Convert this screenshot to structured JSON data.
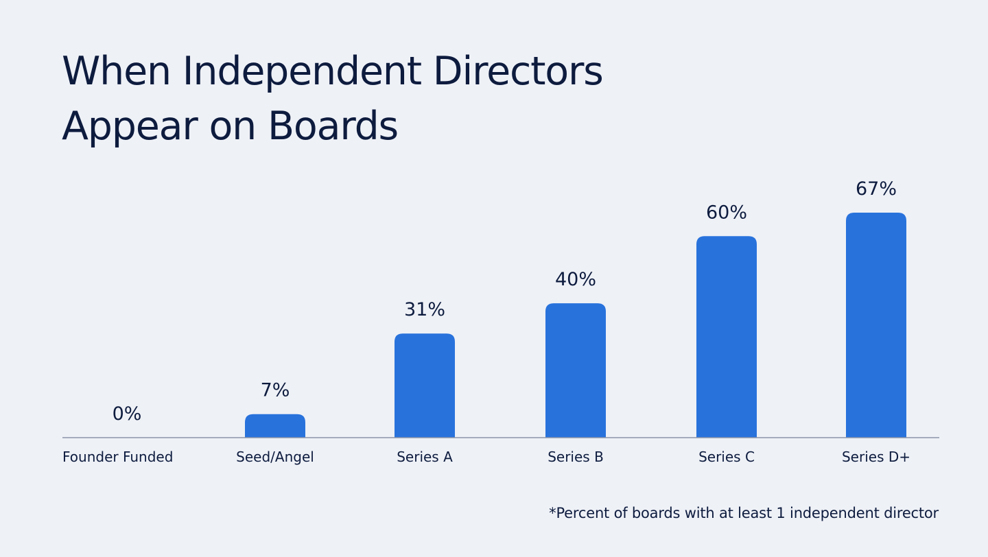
{
  "chart_data": {
    "type": "bar",
    "title_lines": [
      "When Independent Directors",
      "Appear on Boards"
    ],
    "categories": [
      "Founder Funded",
      "Seed/Angel",
      "Series A",
      "Series B",
      "Series C",
      "Series D+"
    ],
    "values": [
      0,
      7,
      31,
      40,
      60,
      67
    ],
    "value_labels": [
      "0%",
      "7%",
      "31%",
      "40%",
      "60%",
      "67%"
    ],
    "unit": "%",
    "ylim": [
      0,
      70
    ],
    "xlabel": "",
    "ylabel": "",
    "grid": false,
    "footnote": "*Percent of boards with at least 1 independent director",
    "colors": {
      "bar": "#2872dc",
      "text": "#0d1b3e",
      "axis": "#8a94a8",
      "background": "#eef1f6"
    }
  }
}
